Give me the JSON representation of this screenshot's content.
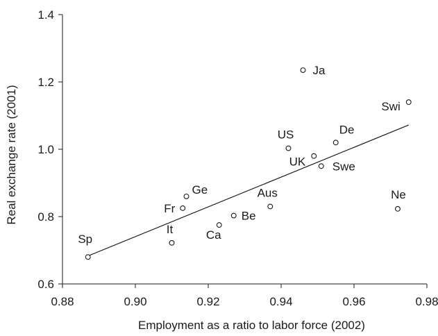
{
  "chart_data": {
    "type": "scatter",
    "xlabel": "Employment as a ratio to labor force (2002)",
    "ylabel": "Real exchange rate (2001)",
    "xlim": [
      0.88,
      0.98
    ],
    "ylim": [
      0.6,
      1.4
    ],
    "xticks": [
      "0.88",
      "0.90",
      "0.92",
      "0.94",
      "0.96",
      "0.98"
    ],
    "yticks": [
      "0.6",
      "0.8",
      "1.0",
      "1.2",
      "1.4"
    ],
    "grid": false,
    "legend": "none",
    "points": [
      {
        "label": "Sp",
        "x": 0.887,
        "y": 0.68
      },
      {
        "label": "It",
        "x": 0.91,
        "y": 0.722
      },
      {
        "label": "Fr",
        "x": 0.913,
        "y": 0.825
      },
      {
        "label": "Ge",
        "x": 0.914,
        "y": 0.86
      },
      {
        "label": "Ca",
        "x": 0.923,
        "y": 0.775
      },
      {
        "label": "Be",
        "x": 0.927,
        "y": 0.803
      },
      {
        "label": "Aus",
        "x": 0.937,
        "y": 0.83
      },
      {
        "label": "US",
        "x": 0.942,
        "y": 1.003
      },
      {
        "label": "Ja",
        "x": 0.946,
        "y": 1.235
      },
      {
        "label": "UK",
        "x": 0.949,
        "y": 0.98
      },
      {
        "label": "Swe",
        "x": 0.951,
        "y": 0.95
      },
      {
        "label": "De",
        "x": 0.955,
        "y": 1.02
      },
      {
        "label": "Ne",
        "x": 0.972,
        "y": 0.823
      },
      {
        "label": "Swi",
        "x": 0.975,
        "y": 1.14
      }
    ],
    "trendline": {
      "x": [
        0.887,
        0.975
      ],
      "y": [
        0.683,
        1.072
      ]
    }
  }
}
